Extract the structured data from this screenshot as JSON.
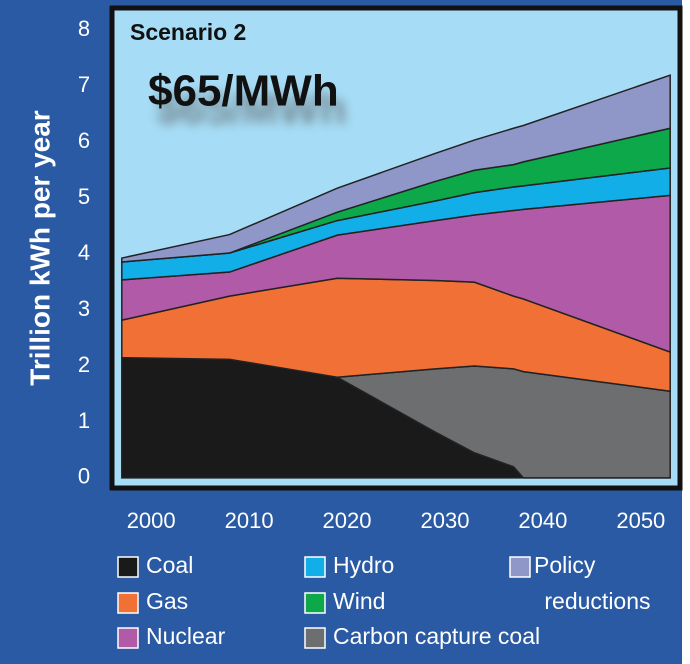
{
  "chart_data": {
    "type": "stacked_area",
    "ylabel": "Trillion kWh per year",
    "annotations": [
      "Scenario 2",
      "$65/MWh"
    ],
    "x": [
      1997,
      2008,
      2019,
      2029,
      2033,
      2037,
      2038,
      2053
    ],
    "xlim": [
      1996,
      2054
    ],
    "xticks": [
      2000,
      2010,
      2020,
      2030,
      2040,
      2050
    ],
    "ylim": [
      -0.18,
      8.4
    ],
    "yticks": [
      0,
      1,
      2,
      3,
      4,
      5,
      6,
      7,
      8
    ],
    "series": [
      {
        "name": "Coal",
        "color": "#1a1a1a",
        "values": [
          2.15,
          2.12,
          1.8,
          0.82,
          0.45,
          0.2,
          0,
          0
        ]
      },
      {
        "name": "Carbon capture coal",
        "color": "#6d6e70",
        "values": [
          0,
          0,
          0,
          1.13,
          1.55,
          1.75,
          1.9,
          1.55
        ]
      },
      {
        "name": "Gas",
        "color": "#f07036",
        "values": [
          0.67,
          1.13,
          1.77,
          1.58,
          1.5,
          1.3,
          1.3,
          0.7
        ]
      },
      {
        "name": "Nuclear",
        "color": "#b05aa8",
        "values": [
          0.72,
          0.43,
          0.77,
          1.07,
          1.2,
          1.53,
          1.6,
          2.8
        ]
      },
      {
        "name": "Hydro",
        "color": "#12aee8",
        "values": [
          0.32,
          0.34,
          0.26,
          0.35,
          0.4,
          0.42,
          0.42,
          0.49
        ]
      },
      {
        "name": "Wind",
        "color": "#0ca84a",
        "values": [
          0,
          0,
          0.15,
          0.35,
          0.4,
          0.4,
          0.43,
          0.71
        ]
      },
      {
        "name": "Policy reductions",
        "color": "#8f96c8",
        "values": [
          0.07,
          0.33,
          0.43,
          0.5,
          0.54,
          0.65,
          0.65,
          0.95
        ]
      }
    ]
  }
}
